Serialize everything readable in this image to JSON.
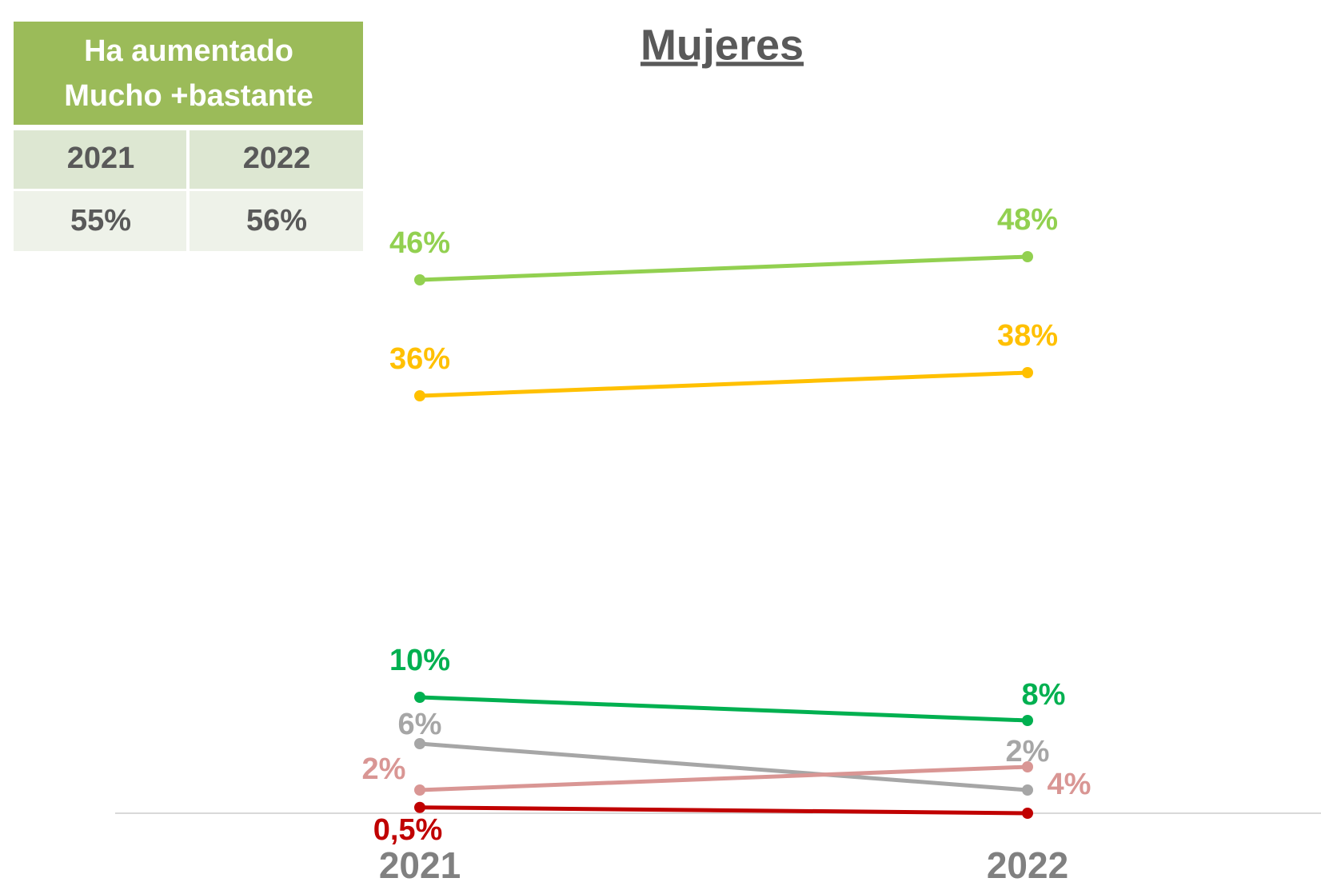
{
  "chart_data": {
    "type": "line",
    "title": "Mujeres",
    "categories": [
      "2021",
      "2022"
    ],
    "ylim": [
      0,
      50
    ],
    "series": [
      {
        "color": "#92D050",
        "values": [
          46,
          48
        ],
        "value_labels": [
          "46%",
          "48%"
        ]
      },
      {
        "color": "#FFC000",
        "values": [
          36,
          38
        ],
        "value_labels": [
          "36%",
          "38%"
        ]
      },
      {
        "color": "#00B050",
        "values": [
          10,
          8
        ],
        "value_labels": [
          "10%",
          "8%"
        ]
      },
      {
        "color": "#A6A6A6",
        "values": [
          6,
          2
        ],
        "value_labels": [
          "6%",
          "2%"
        ]
      },
      {
        "color": "#D99694",
        "values": [
          2,
          4
        ],
        "value_labels": [
          "2%",
          "4%"
        ]
      },
      {
        "color": "#C00000",
        "values": [
          0.5,
          0
        ],
        "value_labels": [
          "0,5%",
          null
        ]
      }
    ]
  },
  "table": {
    "header": [
      "Ha aumentado",
      "Mucho +bastante"
    ],
    "columns": [
      "2021",
      "2022"
    ],
    "row": [
      "55%",
      "56%"
    ]
  }
}
